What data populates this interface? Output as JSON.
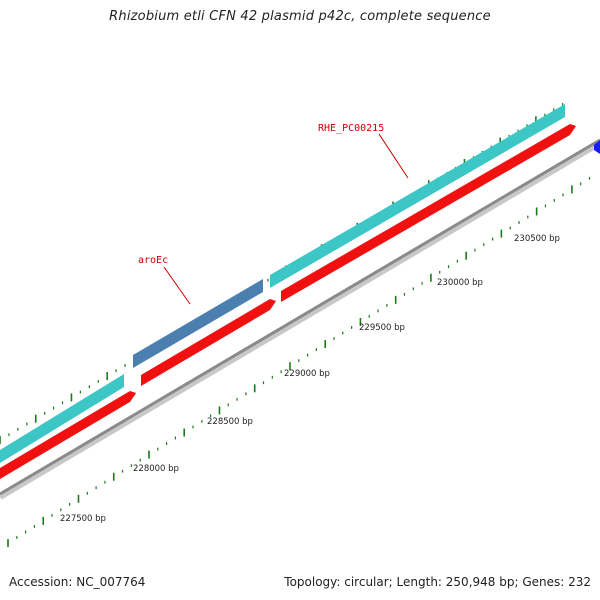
{
  "title": "Rhizobium etli CFN 42 plasmid p42c, complete sequence",
  "footer": {
    "accession": "Accession: NC_007764",
    "summary": "Topology: circular; Length: 250,948 bp; Genes: 232"
  },
  "colors": {
    "cds_forward": "#3cc6c6",
    "highlight": "#4a7fb0",
    "cds_reverse": "#f01010",
    "backbone": "#8a8a8a",
    "ticks": "#1a7a1a",
    "labels": "#cc0000",
    "text": "#222222",
    "edge_feature": "#1a1aff"
  },
  "genes": [
    {
      "name": "aroEc",
      "label_color": "#cc0000"
    },
    {
      "name": "RHE_PC00215",
      "label_color": "#cc0000"
    }
  ],
  "tick_labels": [
    "227500 bp",
    "228000 bp",
    "228500 bp",
    "229000 bp",
    "229500 bp",
    "230000 bp",
    "230500 bp"
  ]
}
